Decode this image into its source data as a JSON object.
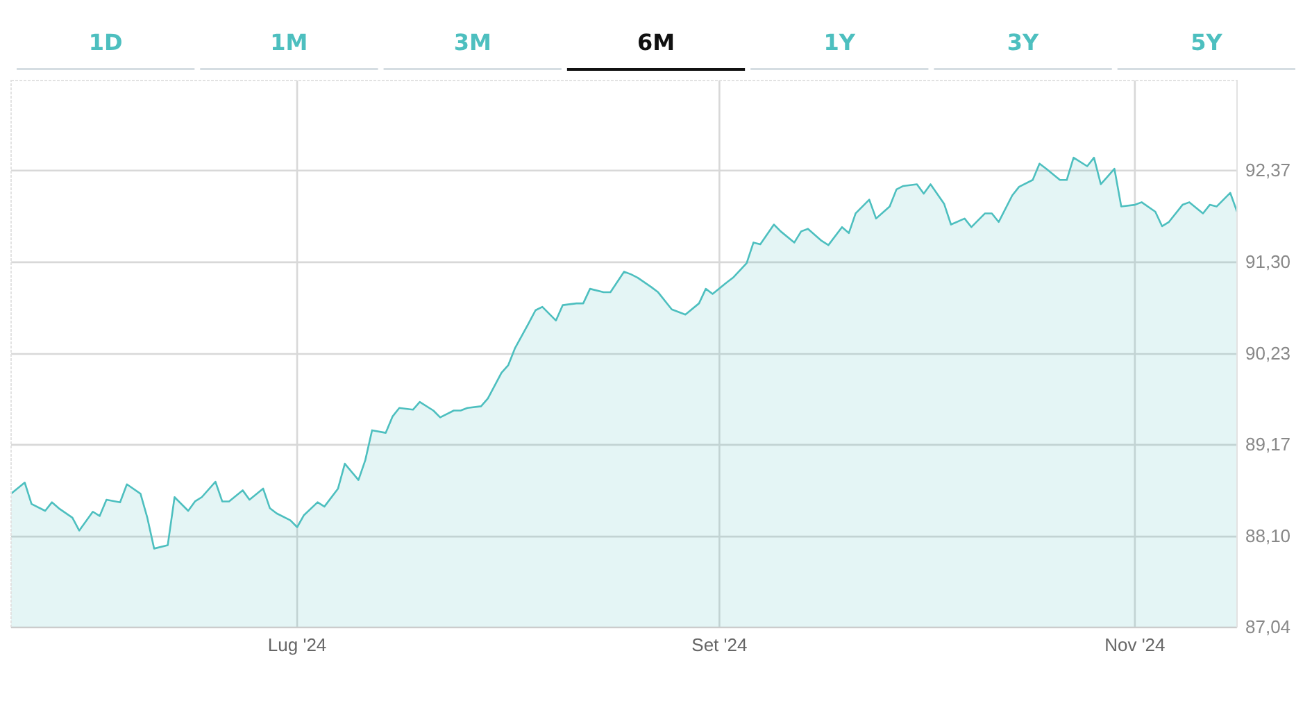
{
  "chart_data": {
    "type": "area",
    "annotations": [
      "1D",
      "1M",
      "3M",
      "6M",
      "1Y",
      "3Y",
      "5Y"
    ],
    "xlim": [
      "2024-05-20",
      "2024-11-16"
    ],
    "xticks": [
      {
        "value": "2024-07-01",
        "label": "Lug '24"
      },
      {
        "value": "2024-09-01",
        "label": "Set '24"
      },
      {
        "value": "2024-11-01",
        "label": "Nov '24"
      }
    ],
    "ylim": [
      87.04,
      93.42
    ],
    "yticks": [
      {
        "value": 87.04,
        "label": "87,04"
      },
      {
        "value": 88.1,
        "label": "88,10"
      },
      {
        "value": 89.17,
        "label": "89,17"
      },
      {
        "value": 90.23,
        "label": "90,23"
      },
      {
        "value": 91.3,
        "label": "91,30"
      },
      {
        "value": 92.37,
        "label": "92,37"
      }
    ],
    "grid": true,
    "x": [
      "2024-05-20",
      "2024-05-22",
      "2024-05-23",
      "2024-05-25",
      "2024-05-26",
      "2024-05-27",
      "2024-05-29",
      "2024-05-30",
      "2024-06-01",
      "2024-06-02",
      "2024-06-03",
      "2024-06-05",
      "2024-06-06",
      "2024-06-08",
      "2024-06-09",
      "2024-06-10",
      "2024-06-12",
      "2024-06-13",
      "2024-06-15",
      "2024-06-16",
      "2024-06-17",
      "2024-06-19",
      "2024-06-20",
      "2024-06-21",
      "2024-06-23",
      "2024-06-24",
      "2024-06-26",
      "2024-06-27",
      "2024-06-28",
      "2024-06-30",
      "2024-07-01",
      "2024-07-02",
      "2024-07-04",
      "2024-07-05",
      "2024-07-07",
      "2024-07-08",
      "2024-07-10",
      "2024-07-11",
      "2024-07-12",
      "2024-07-14",
      "2024-07-15",
      "2024-07-16",
      "2024-07-18",
      "2024-07-19",
      "2024-07-21",
      "2024-07-22",
      "2024-07-24",
      "2024-07-25",
      "2024-07-26",
      "2024-07-28",
      "2024-07-29",
      "2024-07-31",
      "2024-08-01",
      "2024-08-02",
      "2024-08-04",
      "2024-08-05",
      "2024-08-06",
      "2024-08-08",
      "2024-08-09",
      "2024-08-11",
      "2024-08-12",
      "2024-08-13",
      "2024-08-15",
      "2024-08-16",
      "2024-08-18",
      "2024-08-19",
      "2024-08-20",
      "2024-08-22",
      "2024-08-23",
      "2024-08-25",
      "2024-08-26",
      "2024-08-27",
      "2024-08-29",
      "2024-08-30",
      "2024-08-31",
      "2024-09-02",
      "2024-09-03",
      "2024-09-05",
      "2024-09-06",
      "2024-09-07",
      "2024-09-09",
      "2024-09-10",
      "2024-09-12",
      "2024-09-13",
      "2024-09-14",
      "2024-09-16",
      "2024-09-17",
      "2024-09-19",
      "2024-09-20",
      "2024-09-21",
      "2024-09-23",
      "2024-09-24",
      "2024-09-26",
      "2024-09-27",
      "2024-09-28",
      "2024-09-30",
      "2024-10-01",
      "2024-10-02",
      "2024-10-04",
      "2024-10-05",
      "2024-10-07",
      "2024-10-08",
      "2024-10-10",
      "2024-10-11",
      "2024-10-12",
      "2024-10-14",
      "2024-10-15",
      "2024-10-17",
      "2024-10-18",
      "2024-10-19",
      "2024-10-21",
      "2024-10-22",
      "2024-10-23",
      "2024-10-25",
      "2024-10-26",
      "2024-10-27",
      "2024-10-29",
      "2024-10-30",
      "2024-11-01",
      "2024-11-02",
      "2024-11-04",
      "2024-11-05",
      "2024-11-06",
      "2024-11-08",
      "2024-11-09",
      "2024-11-11",
      "2024-11-12",
      "2024-11-13",
      "2024-11-15",
      "2024-11-16"
    ],
    "series": [
      {
        "color": "#4dbfbf",
        "values": [
          88.6,
          88.73,
          88.48,
          88.4,
          88.5,
          88.43,
          88.32,
          88.17,
          88.39,
          88.34,
          88.53,
          88.5,
          88.71,
          88.6,
          88.32,
          87.96,
          88.0,
          88.56,
          88.4,
          88.51,
          88.56,
          88.74,
          88.51,
          88.51,
          88.64,
          88.53,
          88.66,
          88.43,
          88.37,
          88.29,
          88.21,
          88.35,
          88.5,
          88.45,
          88.66,
          88.95,
          88.76,
          88.99,
          89.34,
          89.31,
          89.5,
          89.6,
          89.58,
          89.67,
          89.57,
          89.49,
          89.57,
          89.57,
          89.6,
          89.62,
          89.71,
          90.01,
          90.1,
          90.3,
          90.59,
          90.74,
          90.78,
          90.62,
          90.8,
          90.82,
          90.82,
          90.99,
          90.95,
          90.95,
          91.19,
          91.16,
          91.12,
          91.01,
          90.95,
          90.75,
          90.72,
          90.69,
          90.82,
          90.99,
          90.93,
          91.06,
          91.12,
          91.29,
          91.53,
          91.51,
          91.74,
          91.66,
          91.53,
          91.66,
          91.69,
          91.55,
          91.5,
          91.71,
          91.64,
          91.87,
          92.03,
          91.81,
          91.95,
          92.15,
          92.19,
          92.21,
          92.1,
          92.21,
          91.98,
          91.74,
          91.81,
          91.71,
          91.87,
          91.87,
          91.77,
          92.08,
          92.18,
          92.26,
          92.45,
          92.39,
          92.26,
          92.26,
          92.52,
          92.42,
          92.52,
          92.21,
          92.39,
          91.95,
          91.97,
          92.0,
          91.89,
          91.72,
          91.77,
          91.97,
          92.0,
          91.87,
          91.97,
          91.95,
          92.11,
          91.89
        ]
      }
    ]
  }
}
